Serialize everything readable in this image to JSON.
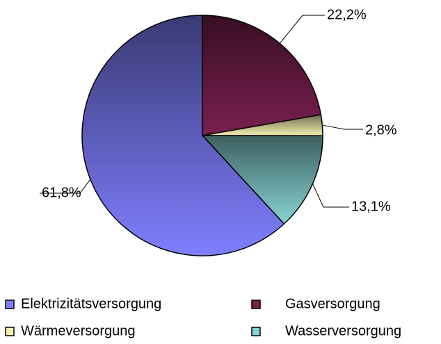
{
  "chart_data": {
    "type": "pie",
    "categories": [
      "Gasversorgung",
      "Wärmeversorgung",
      "Wasserversorgung",
      "Elektrizitätsversorgung"
    ],
    "values": [
      22.2,
      2.8,
      13.1,
      61.8
    ],
    "value_labels": [
      "22,2%",
      "2,8%",
      "13,1%",
      "61,8%"
    ],
    "colors": [
      "#7a1f4f",
      "#f4f0b0",
      "#88d4d4",
      "#7f7fff"
    ],
    "legend": "bottom"
  }
}
